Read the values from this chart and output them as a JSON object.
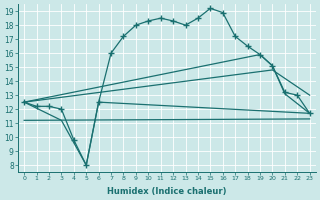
{
  "xlabel": "Humidex (Indice chaleur)",
  "xlim": [
    -0.5,
    23.5
  ],
  "ylim": [
    7.5,
    19.5
  ],
  "xticks": [
    0,
    1,
    2,
    3,
    4,
    5,
    6,
    7,
    8,
    9,
    10,
    11,
    12,
    13,
    14,
    15,
    16,
    17,
    18,
    19,
    20,
    21,
    22,
    23
  ],
  "yticks": [
    8,
    9,
    10,
    11,
    12,
    13,
    14,
    15,
    16,
    17,
    18,
    19
  ],
  "background_color": "#cce8e8",
  "grid_color": "#ffffff",
  "line_color": "#1a7070",
  "series": [
    {
      "x": [
        0,
        1,
        2,
        3,
        4,
        5,
        6,
        7,
        8,
        9,
        10,
        11,
        12,
        13,
        14,
        15,
        16,
        17,
        18,
        19,
        20,
        21,
        22,
        23
      ],
      "y": [
        12.5,
        12.2,
        12.2,
        12.0,
        9.8,
        8.0,
        12.5,
        16.0,
        17.2,
        18.0,
        18.3,
        18.5,
        18.3,
        18.0,
        18.5,
        19.2,
        18.9,
        17.2,
        16.5,
        15.9,
        15.1,
        13.2,
        13.0,
        11.7
      ],
      "with_marker": true,
      "marker": "+",
      "markersize": 4,
      "linewidth": 0.9
    },
    {
      "x": [
        0,
        23
      ],
      "y": [
        11.2,
        11.3
      ],
      "with_marker": false,
      "linewidth": 0.9
    },
    {
      "comment": "V-shape + cross line: (0,12.5)->(3,11.2)->(5,8.0)->(6,12.5)->(23,11.7)",
      "x": [
        0,
        3,
        5,
        6,
        23
      ],
      "y": [
        12.5,
        11.2,
        8.0,
        12.5,
        11.7
      ],
      "with_marker": false,
      "linewidth": 0.9
    },
    {
      "comment": "diagonal rising then dropping line: (0,12.5)->(19,15.9)->(20,15.1)->(21,13.1)->(23,11.7)",
      "x": [
        0,
        19,
        20,
        21,
        23
      ],
      "y": [
        12.5,
        15.9,
        15.1,
        13.1,
        11.7
      ],
      "with_marker": false,
      "linewidth": 0.9
    },
    {
      "comment": "second diagonal line slightly below: (0,12.5)->(20,14.8)->(23,13.0)",
      "x": [
        0,
        20,
        23
      ],
      "y": [
        12.5,
        14.8,
        13.0
      ],
      "with_marker": false,
      "linewidth": 0.9
    }
  ]
}
